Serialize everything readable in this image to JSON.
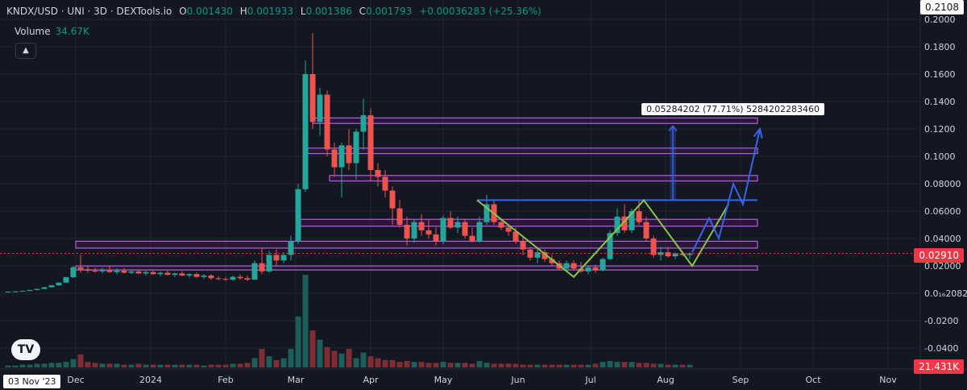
{
  "legend": {
    "symbol": "KNDX/USD · UNI · 3D · DEXTools.io",
    "open_label": "O",
    "open": "0.001430",
    "high_label": "H",
    "high": "0.001933",
    "low_label": "L",
    "low": "0.001386",
    "close_label": "C",
    "close": "0.001793",
    "change": "+0.00036283 (+25.36%)"
  },
  "volume": {
    "label": "Volume",
    "value": "34.67K"
  },
  "collapse_icon": "chevron-up-icon",
  "logo_text": "TV",
  "badges": {
    "top_price": "0.2108",
    "current_price": "0.02910",
    "volume": "21.431K",
    "date": "03 Nov '23"
  },
  "measure_label": "0.05284202 (77.71%) 5284202283460",
  "colors": {
    "background": "#131722",
    "up": "#26a69a",
    "down": "#ef5350",
    "zone": "#b45fdc",
    "blue_line": "#3a63e8",
    "green_line": "#8bc34a",
    "price_line": "#f23645"
  },
  "chart_data": {
    "type": "candlestick",
    "title": "KNDX/USD · UNI · 3D · DEXTools.io",
    "y_axis": {
      "ticks": [
        "0.2000",
        "0.1800",
        "0.1600",
        "0.1400",
        "0.1200",
        "0.1000",
        "0.08000",
        "0.06000",
        "0.04000",
        "0.02000",
        "0.0₁₆2082",
        "-0.0200",
        "-0.0400"
      ],
      "tick_values": [
        0.2,
        0.18,
        0.16,
        0.14,
        0.12,
        0.1,
        0.08,
        0.06,
        0.04,
        0.02,
        0.0,
        -0.02,
        -0.04
      ]
    },
    "x_axis": {
      "ticks": [
        "Dec",
        "2024",
        "Feb",
        "Mar",
        "Apr",
        "May",
        "Jun",
        "Jul",
        "Aug",
        "Sep",
        "Oct",
        "Nov"
      ],
      "tick_days": [
        28,
        59,
        90,
        119,
        150,
        180,
        211,
        241,
        272,
        303,
        333,
        364
      ]
    },
    "candles": [
      {
        "d": 0,
        "o": 0.001,
        "h": 0.0014,
        "l": 0.0008,
        "c": 0.0012
      },
      {
        "d": 3,
        "o": 0.0012,
        "h": 0.0016,
        "l": 0.001,
        "c": 0.0014
      },
      {
        "d": 6,
        "o": 0.0014,
        "h": 0.002,
        "l": 0.0012,
        "c": 0.0018
      },
      {
        "d": 9,
        "o": 0.0018,
        "h": 0.0026,
        "l": 0.0016,
        "c": 0.0024
      },
      {
        "d": 12,
        "o": 0.0024,
        "h": 0.0034,
        "l": 0.0022,
        "c": 0.0032
      },
      {
        "d": 15,
        "o": 0.0032,
        "h": 0.0046,
        "l": 0.003,
        "c": 0.0044
      },
      {
        "d": 18,
        "o": 0.0044,
        "h": 0.006,
        "l": 0.0042,
        "c": 0.0058
      },
      {
        "d": 21,
        "o": 0.0058,
        "h": 0.008,
        "l": 0.0056,
        "c": 0.0078
      },
      {
        "d": 24,
        "o": 0.0078,
        "h": 0.012,
        "l": 0.0076,
        "c": 0.0118
      },
      {
        "d": 27,
        "o": 0.0118,
        "h": 0.02,
        "l": 0.011,
        "c": 0.019
      },
      {
        "d": 30,
        "o": 0.019,
        "h": 0.028,
        "l": 0.015,
        "c": 0.0175
      },
      {
        "d": 33,
        "o": 0.0175,
        "h": 0.02,
        "l": 0.015,
        "c": 0.0165
      },
      {
        "d": 36,
        "o": 0.0165,
        "h": 0.0185,
        "l": 0.015,
        "c": 0.016
      },
      {
        "d": 39,
        "o": 0.016,
        "h": 0.0185,
        "l": 0.0145,
        "c": 0.017
      },
      {
        "d": 42,
        "o": 0.017,
        "h": 0.02,
        "l": 0.015,
        "c": 0.0155
      },
      {
        "d": 45,
        "o": 0.0155,
        "h": 0.018,
        "l": 0.014,
        "c": 0.0165
      },
      {
        "d": 48,
        "o": 0.0165,
        "h": 0.0185,
        "l": 0.0145,
        "c": 0.015
      },
      {
        "d": 51,
        "o": 0.015,
        "h": 0.0175,
        "l": 0.014,
        "c": 0.016
      },
      {
        "d": 54,
        "o": 0.016,
        "h": 0.0175,
        "l": 0.014,
        "c": 0.0145
      },
      {
        "d": 57,
        "o": 0.0145,
        "h": 0.0165,
        "l": 0.013,
        "c": 0.0155
      },
      {
        "d": 60,
        "o": 0.0155,
        "h": 0.017,
        "l": 0.0135,
        "c": 0.014
      },
      {
        "d": 63,
        "o": 0.014,
        "h": 0.016,
        "l": 0.0125,
        "c": 0.015
      },
      {
        "d": 66,
        "o": 0.015,
        "h": 0.0165,
        "l": 0.013,
        "c": 0.0135
      },
      {
        "d": 69,
        "o": 0.0135,
        "h": 0.015,
        "l": 0.012,
        "c": 0.0145
      },
      {
        "d": 72,
        "o": 0.0145,
        "h": 0.016,
        "l": 0.0125,
        "c": 0.013
      },
      {
        "d": 75,
        "o": 0.013,
        "h": 0.0145,
        "l": 0.0115,
        "c": 0.014
      },
      {
        "d": 78,
        "o": 0.014,
        "h": 0.015,
        "l": 0.0115,
        "c": 0.012
      },
      {
        "d": 81,
        "o": 0.012,
        "h": 0.014,
        "l": 0.0105,
        "c": 0.013
      },
      {
        "d": 84,
        "o": 0.013,
        "h": 0.014,
        "l": 0.01,
        "c": 0.011
      },
      {
        "d": 87,
        "o": 0.011,
        "h": 0.0125,
        "l": 0.0095,
        "c": 0.0105
      },
      {
        "d": 90,
        "o": 0.0105,
        "h": 0.012,
        "l": 0.009,
        "c": 0.01
      },
      {
        "d": 93,
        "o": 0.01,
        "h": 0.013,
        "l": 0.009,
        "c": 0.012
      },
      {
        "d": 96,
        "o": 0.012,
        "h": 0.014,
        "l": 0.01,
        "c": 0.011
      },
      {
        "d": 99,
        "o": 0.011,
        "h": 0.013,
        "l": 0.009,
        "c": 0.01
      },
      {
        "d": 102,
        "o": 0.01,
        "h": 0.024,
        "l": 0.01,
        "c": 0.022
      },
      {
        "d": 105,
        "o": 0.022,
        "h": 0.033,
        "l": 0.014,
        "c": 0.016
      },
      {
        "d": 108,
        "o": 0.016,
        "h": 0.031,
        "l": 0.015,
        "c": 0.028
      },
      {
        "d": 111,
        "o": 0.028,
        "h": 0.032,
        "l": 0.02,
        "c": 0.024
      },
      {
        "d": 114,
        "o": 0.024,
        "h": 0.03,
        "l": 0.022,
        "c": 0.028
      },
      {
        "d": 117,
        "o": 0.028,
        "h": 0.042,
        "l": 0.024,
        "c": 0.038
      },
      {
        "d": 120,
        "o": 0.038,
        "h": 0.08,
        "l": 0.036,
        "c": 0.076
      },
      {
        "d": 123,
        "o": 0.076,
        "h": 0.17,
        "l": 0.074,
        "c": 0.16
      },
      {
        "d": 126,
        "o": 0.16,
        "h": 0.19,
        "l": 0.12,
        "c": 0.125
      },
      {
        "d": 129,
        "o": 0.125,
        "h": 0.15,
        "l": 0.115,
        "c": 0.145
      },
      {
        "d": 132,
        "o": 0.145,
        "h": 0.148,
        "l": 0.1,
        "c": 0.105
      },
      {
        "d": 135,
        "o": 0.105,
        "h": 0.11,
        "l": 0.085,
        "c": 0.092
      },
      {
        "d": 138,
        "o": 0.092,
        "h": 0.11,
        "l": 0.07,
        "c": 0.108
      },
      {
        "d": 141,
        "o": 0.108,
        "h": 0.12,
        "l": 0.09,
        "c": 0.095
      },
      {
        "d": 144,
        "o": 0.095,
        "h": 0.12,
        "l": 0.083,
        "c": 0.118
      },
      {
        "d": 147,
        "o": 0.118,
        "h": 0.142,
        "l": 0.105,
        "c": 0.13
      },
      {
        "d": 150,
        "o": 0.13,
        "h": 0.135,
        "l": 0.082,
        "c": 0.09
      },
      {
        "d": 153,
        "o": 0.09,
        "h": 0.095,
        "l": 0.078,
        "c": 0.085
      },
      {
        "d": 156,
        "o": 0.085,
        "h": 0.09,
        "l": 0.07,
        "c": 0.075
      },
      {
        "d": 159,
        "o": 0.075,
        "h": 0.078,
        "l": 0.05,
        "c": 0.062
      },
      {
        "d": 162,
        "o": 0.062,
        "h": 0.068,
        "l": 0.048,
        "c": 0.05
      },
      {
        "d": 165,
        "o": 0.05,
        "h": 0.056,
        "l": 0.035,
        "c": 0.04
      },
      {
        "d": 168,
        "o": 0.04,
        "h": 0.054,
        "l": 0.037,
        "c": 0.052
      },
      {
        "d": 171,
        "o": 0.052,
        "h": 0.058,
        "l": 0.042,
        "c": 0.046
      },
      {
        "d": 174,
        "o": 0.046,
        "h": 0.054,
        "l": 0.04,
        "c": 0.043
      },
      {
        "d": 177,
        "o": 0.043,
        "h": 0.048,
        "l": 0.035,
        "c": 0.038
      },
      {
        "d": 180,
        "o": 0.038,
        "h": 0.057,
        "l": 0.036,
        "c": 0.055
      },
      {
        "d": 183,
        "o": 0.055,
        "h": 0.06,
        "l": 0.047,
        "c": 0.048
      },
      {
        "d": 186,
        "o": 0.048,
        "h": 0.056,
        "l": 0.044,
        "c": 0.052
      },
      {
        "d": 189,
        "o": 0.052,
        "h": 0.054,
        "l": 0.04,
        "c": 0.042
      },
      {
        "d": 192,
        "o": 0.042,
        "h": 0.048,
        "l": 0.037,
        "c": 0.038
      },
      {
        "d": 195,
        "o": 0.038,
        "h": 0.056,
        "l": 0.037,
        "c": 0.052
      },
      {
        "d": 198,
        "o": 0.052,
        "h": 0.072,
        "l": 0.05,
        "c": 0.065
      },
      {
        "d": 201,
        "o": 0.065,
        "h": 0.068,
        "l": 0.05,
        "c": 0.052
      },
      {
        "d": 204,
        "o": 0.052,
        "h": 0.055,
        "l": 0.046,
        "c": 0.048
      },
      {
        "d": 207,
        "o": 0.048,
        "h": 0.05,
        "l": 0.042,
        "c": 0.045
      },
      {
        "d": 210,
        "o": 0.045,
        "h": 0.048,
        "l": 0.036,
        "c": 0.038
      },
      {
        "d": 213,
        "o": 0.038,
        "h": 0.042,
        "l": 0.028,
        "c": 0.032
      },
      {
        "d": 216,
        "o": 0.032,
        "h": 0.034,
        "l": 0.024,
        "c": 0.026
      },
      {
        "d": 219,
        "o": 0.026,
        "h": 0.033,
        "l": 0.022,
        "c": 0.03
      },
      {
        "d": 222,
        "o": 0.03,
        "h": 0.032,
        "l": 0.023,
        "c": 0.025
      },
      {
        "d": 225,
        "o": 0.025,
        "h": 0.028,
        "l": 0.02,
        "c": 0.022
      },
      {
        "d": 228,
        "o": 0.022,
        "h": 0.024,
        "l": 0.017,
        "c": 0.018
      },
      {
        "d": 231,
        "o": 0.018,
        "h": 0.024,
        "l": 0.016,
        "c": 0.022
      },
      {
        "d": 234,
        "o": 0.022,
        "h": 0.024,
        "l": 0.017,
        "c": 0.018
      },
      {
        "d": 237,
        "o": 0.018,
        "h": 0.023,
        "l": 0.015,
        "c": 0.016
      },
      {
        "d": 240,
        "o": 0.016,
        "h": 0.02,
        "l": 0.014,
        "c": 0.019
      },
      {
        "d": 243,
        "o": 0.019,
        "h": 0.021,
        "l": 0.015,
        "c": 0.017
      },
      {
        "d": 246,
        "o": 0.017,
        "h": 0.026,
        "l": 0.016,
        "c": 0.025
      },
      {
        "d": 249,
        "o": 0.025,
        "h": 0.046,
        "l": 0.024,
        "c": 0.044
      },
      {
        "d": 252,
        "o": 0.044,
        "h": 0.062,
        "l": 0.042,
        "c": 0.056
      },
      {
        "d": 255,
        "o": 0.056,
        "h": 0.065,
        "l": 0.044,
        "c": 0.046
      },
      {
        "d": 258,
        "o": 0.046,
        "h": 0.062,
        "l": 0.044,
        "c": 0.06
      },
      {
        "d": 261,
        "o": 0.06,
        "h": 0.068,
        "l": 0.05,
        "c": 0.052
      },
      {
        "d": 264,
        "o": 0.052,
        "h": 0.056,
        "l": 0.038,
        "c": 0.04
      },
      {
        "d": 267,
        "o": 0.04,
        "h": 0.042,
        "l": 0.026,
        "c": 0.028
      },
      {
        "d": 270,
        "o": 0.028,
        "h": 0.034,
        "l": 0.024,
        "c": 0.03
      },
      {
        "d": 273,
        "o": 0.03,
        "h": 0.034,
        "l": 0.026,
        "c": 0.027
      },
      {
        "d": 276,
        "o": 0.027,
        "h": 0.03,
        "l": 0.025,
        "c": 0.029
      },
      {
        "d": 279,
        "o": 0.029,
        "h": 0.031,
        "l": 0.027,
        "c": 0.028
      },
      {
        "d": 282,
        "o": 0.028,
        "h": 0.03,
        "l": 0.025,
        "c": 0.0291
      }
    ],
    "volume_relative": [
      0.02,
      0.02,
      0.03,
      0.03,
      0.04,
      0.04,
      0.05,
      0.05,
      0.06,
      0.09,
      0.14,
      0.06,
      0.05,
      0.04,
      0.04,
      0.04,
      0.03,
      0.03,
      0.04,
      0.03,
      0.03,
      0.03,
      0.03,
      0.03,
      0.03,
      0.03,
      0.03,
      0.02,
      0.03,
      0.03,
      0.03,
      0.04,
      0.04,
      0.05,
      0.1,
      0.2,
      0.12,
      0.08,
      0.1,
      0.2,
      0.55,
      1.0,
      0.4,
      0.3,
      0.22,
      0.18,
      0.15,
      0.2,
      0.1,
      0.16,
      0.12,
      0.1,
      0.08,
      0.08,
      0.06,
      0.07,
      0.06,
      0.06,
      0.05,
      0.05,
      0.06,
      0.05,
      0.05,
      0.05,
      0.04,
      0.07,
      0.05,
      0.04,
      0.04,
      0.04,
      0.04,
      0.03,
      0.03,
      0.03,
      0.03,
      0.03,
      0.03,
      0.03,
      0.03,
      0.03,
      0.03,
      0.04,
      0.06,
      0.07,
      0.06,
      0.06,
      0.06,
      0.05,
      0.05,
      0.04,
      0.04,
      0.03,
      0.03,
      0.03,
      0.03
    ],
    "zones": [
      {
        "top": 0.128,
        "bottom": 0.124,
        "d_start": 126,
        "d_end": 310
      },
      {
        "top": 0.106,
        "bottom": 0.102,
        "d_start": 124,
        "d_end": 310
      },
      {
        "top": 0.086,
        "bottom": 0.082,
        "d_start": 133,
        "d_end": 310
      },
      {
        "top": 0.054,
        "bottom": 0.049,
        "d_start": 121,
        "d_end": 310
      },
      {
        "top": 0.038,
        "bottom": 0.033,
        "d_start": 28,
        "d_end": 310
      },
      {
        "top": 0.02,
        "bottom": 0.017,
        "d_start": 28,
        "d_end": 310
      }
    ],
    "horizontal_line": {
      "y": 0.068,
      "d_start": 194,
      "d_end": 310
    },
    "green_pattern": [
      [
        194,
        0.068
      ],
      [
        234,
        0.012
      ],
      [
        263,
        0.068
      ],
      [
        283,
        0.02
      ],
      [
        298,
        0.065
      ]
    ],
    "blue_projection": [
      [
        283,
        0.03
      ],
      [
        290,
        0.055
      ],
      [
        294,
        0.04
      ],
      [
        300,
        0.08
      ],
      [
        304,
        0.065
      ],
      [
        311,
        0.12
      ]
    ],
    "measure": {
      "d": 275,
      "from": 0.068,
      "to": 0.122
    },
    "current_price": 0.0291
  }
}
